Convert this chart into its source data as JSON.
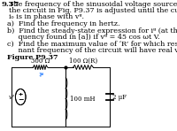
{
  "title_num": "9.37",
  "title_text": "The frequency of the sinusoidal voltage source in",
  "line1": "the circuit in Fig. P9.37 is adjusted until the current",
  "line2": "iₒ is in phase with vᵍ.",
  "a_text": "a)  Find the frequency in hertz.",
  "b_text1": "b)  Find the steady-state expression for iᵍ (at the fre-",
  "b_text2": "     quency found in [a]) if vᵍ = 45 cos ωt V.",
  "c_text1": "c)  Find the maximum value of ‘R’ for which reso-",
  "c_text2": "     nant frequency of the circuit will have real value.",
  "fig_label": "Figure P9.37",
  "r1_label": "300 Ω",
  "r2_label": "100 Ω(R)",
  "l_label": "100 mH",
  "c_label": "2 μF",
  "ig_label": "iᵍ",
  "vg_label": "vᵍ",
  "bg_color": "#ffffff",
  "text_color": "#000000",
  "circuit_color": "#000000",
  "arrow_color": "#5599ff",
  "fs_title": 6.0,
  "fs_body": 5.8,
  "fs_circuit": 5.0
}
